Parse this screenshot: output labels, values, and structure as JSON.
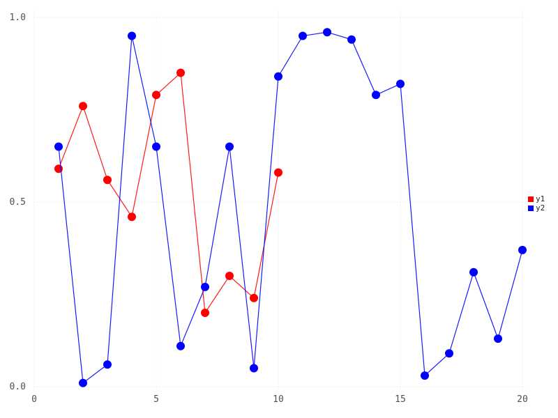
{
  "chart_data": {
    "type": "line",
    "title": "",
    "xlabel": "",
    "ylabel": "",
    "xlim": [
      0,
      20
    ],
    "ylim": [
      0.0,
      1.0
    ],
    "grid": "dotted",
    "grid_color": "#dfdfe9",
    "tick_label_color": "#4f4f5a",
    "background": "#ffffff",
    "legend_position": "right-center",
    "x_ticks": {
      "values": [
        0,
        5,
        10,
        15,
        20
      ],
      "labels": [
        "0",
        "5",
        "10",
        "15",
        "20"
      ]
    },
    "y_ticks": {
      "values": [
        0.0,
        0.5,
        1.0
      ],
      "labels": [
        "0.0",
        "0.5",
        "1.0"
      ]
    },
    "series": [
      {
        "name": "y1",
        "color": "#ff0000",
        "marker": "circle",
        "x": [
          1,
          2,
          3,
          4,
          5,
          6,
          7,
          8,
          9,
          10
        ],
        "values": [
          0.59,
          0.76,
          0.56,
          0.46,
          0.79,
          0.85,
          0.2,
          0.3,
          0.24,
          0.58
        ]
      },
      {
        "name": "y2",
        "color": "#0000ff",
        "marker": "circle",
        "x": [
          1,
          2,
          3,
          4,
          5,
          6,
          7,
          8,
          9,
          10,
          11,
          12,
          13,
          14,
          15,
          16,
          17,
          18,
          19,
          20
        ],
        "values": [
          0.65,
          0.01,
          0.06,
          0.95,
          0.65,
          0.11,
          0.27,
          0.65,
          0.05,
          0.84,
          0.95,
          0.96,
          0.94,
          0.79,
          0.82,
          0.03,
          0.09,
          0.31,
          0.13,
          0.37
        ]
      }
    ]
  }
}
